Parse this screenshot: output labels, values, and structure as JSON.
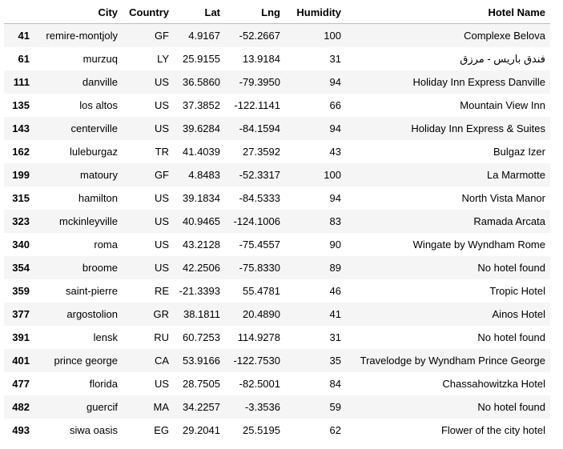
{
  "table": {
    "columns": [
      "",
      "City",
      "Country",
      "Lat",
      "Lng",
      "Humidity",
      "Hotel Name"
    ],
    "rows": [
      {
        "index": "41",
        "city": "remire-montjoly",
        "country": "GF",
        "lat": "4.9167",
        "lng": "-52.2667",
        "humidity": "100",
        "hotel": "Complexe Belova"
      },
      {
        "index": "61",
        "city": "murzuq",
        "country": "LY",
        "lat": "25.9155",
        "lng": "13.9184",
        "humidity": "31",
        "hotel": "فندق باريس - مرزق"
      },
      {
        "index": "111",
        "city": "danville",
        "country": "US",
        "lat": "36.5860",
        "lng": "-79.3950",
        "humidity": "94",
        "hotel": "Holiday Inn Express Danville"
      },
      {
        "index": "135",
        "city": "los altos",
        "country": "US",
        "lat": "37.3852",
        "lng": "-122.1141",
        "humidity": "66",
        "hotel": "Mountain View Inn"
      },
      {
        "index": "143",
        "city": "centerville",
        "country": "US",
        "lat": "39.6284",
        "lng": "-84.1594",
        "humidity": "94",
        "hotel": "Holiday Inn Express & Suites"
      },
      {
        "index": "162",
        "city": "luleburgaz",
        "country": "TR",
        "lat": "41.4039",
        "lng": "27.3592",
        "humidity": "43",
        "hotel": "Bulgaz Izer"
      },
      {
        "index": "199",
        "city": "matoury",
        "country": "GF",
        "lat": "4.8483",
        "lng": "-52.3317",
        "humidity": "100",
        "hotel": "La Marmotte"
      },
      {
        "index": "315",
        "city": "hamilton",
        "country": "US",
        "lat": "39.1834",
        "lng": "-84.5333",
        "humidity": "94",
        "hotel": "North Vista Manor"
      },
      {
        "index": "323",
        "city": "mckinleyville",
        "country": "US",
        "lat": "40.9465",
        "lng": "-124.1006",
        "humidity": "83",
        "hotel": "Ramada Arcata"
      },
      {
        "index": "340",
        "city": "roma",
        "country": "US",
        "lat": "43.2128",
        "lng": "-75.4557",
        "humidity": "90",
        "hotel": "Wingate by Wyndham Rome"
      },
      {
        "index": "354",
        "city": "broome",
        "country": "US",
        "lat": "42.2506",
        "lng": "-75.8330",
        "humidity": "89",
        "hotel": "No hotel found"
      },
      {
        "index": "359",
        "city": "saint-pierre",
        "country": "RE",
        "lat": "-21.3393",
        "lng": "55.4781",
        "humidity": "46",
        "hotel": "Tropic Hotel"
      },
      {
        "index": "377",
        "city": "argostolion",
        "country": "GR",
        "lat": "38.1811",
        "lng": "20.4890",
        "humidity": "41",
        "hotel": "Ainos Hotel"
      },
      {
        "index": "391",
        "city": "lensk",
        "country": "RU",
        "lat": "60.7253",
        "lng": "114.9278",
        "humidity": "31",
        "hotel": "No hotel found"
      },
      {
        "index": "401",
        "city": "prince george",
        "country": "CA",
        "lat": "53.9166",
        "lng": "-122.7530",
        "humidity": "35",
        "hotel": "Travelodge by Wyndham Prince George"
      },
      {
        "index": "477",
        "city": "florida",
        "country": "US",
        "lat": "28.7505",
        "lng": "-82.5001",
        "humidity": "84",
        "hotel": "Chassahowitzka Hotel"
      },
      {
        "index": "482",
        "city": "guercif",
        "country": "MA",
        "lat": "34.2257",
        "lng": "-3.3536",
        "humidity": "59",
        "hotel": "No hotel found"
      },
      {
        "index": "493",
        "city": "siwa oasis",
        "country": "EG",
        "lat": "29.2041",
        "lng": "25.5195",
        "humidity": "62",
        "hotel": "Flower of the city hotel"
      }
    ]
  }
}
